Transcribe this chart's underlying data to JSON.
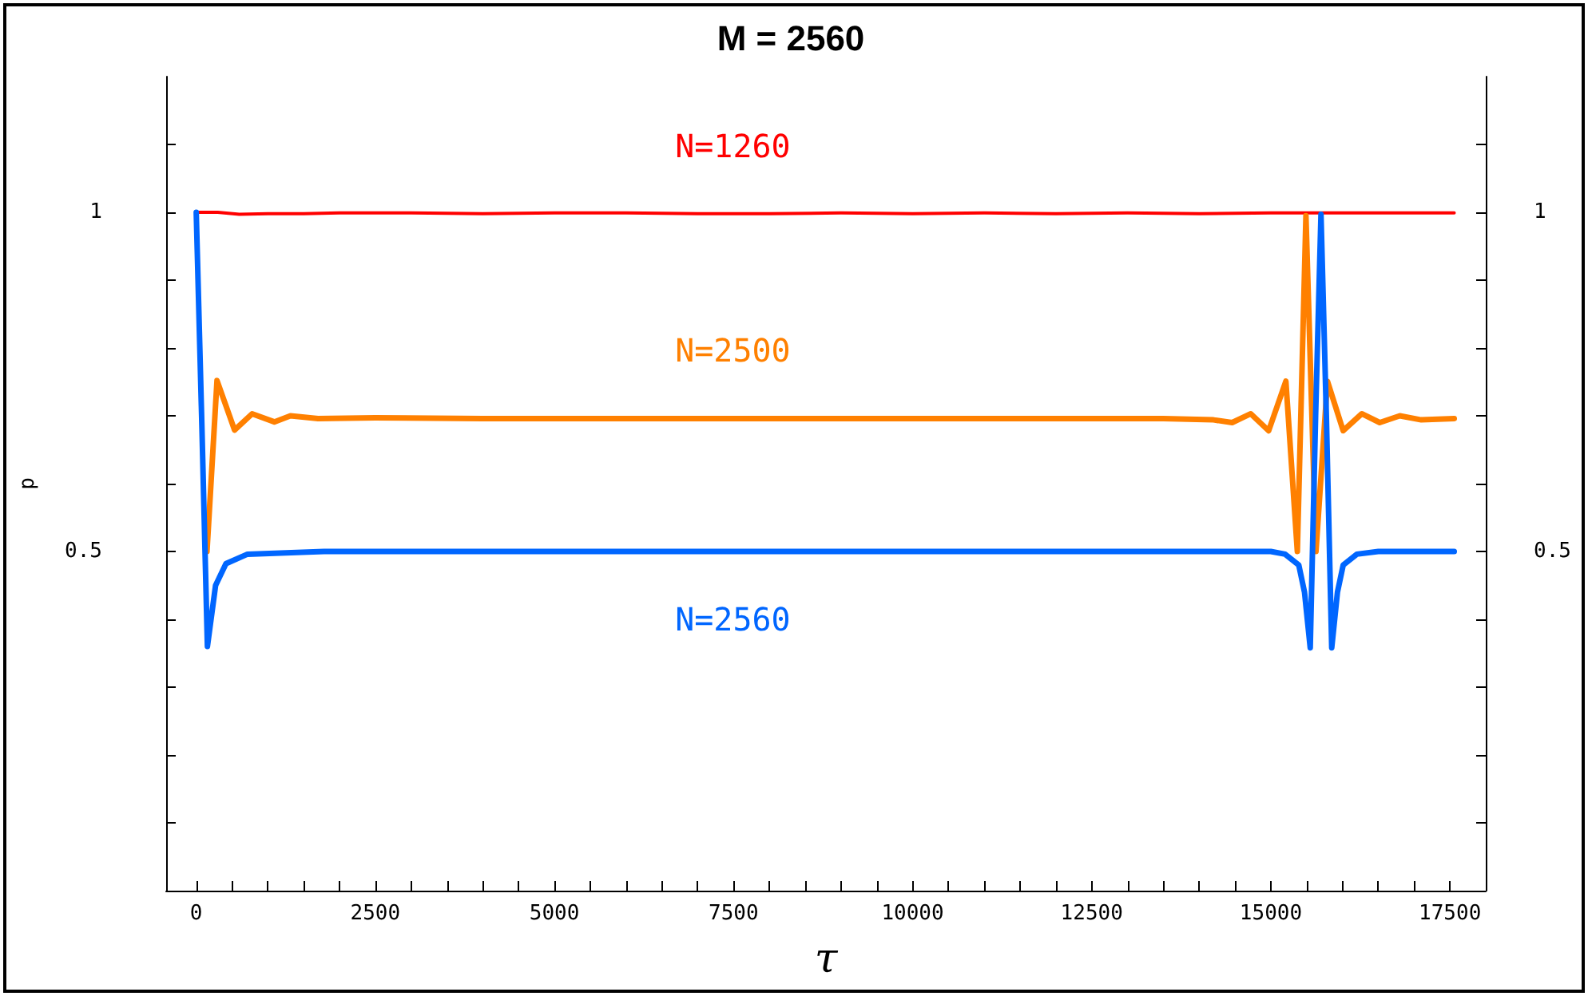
{
  "chart_data": {
    "type": "line",
    "title": "M = 2560",
    "xlabel": "τ",
    "ylabel": "p",
    "xlim": [
      -420,
      18000
    ],
    "ylim": [
      0,
      1.2
    ],
    "y2lim": [
      0,
      1.2
    ],
    "xticks": [
      0,
      {
        "value": 500,
        "label": null
      },
      {
        "value": 1000,
        "label": null
      },
      {
        "value": 1500,
        "label": null
      },
      {
        "value": 2000,
        "label": null
      },
      2500,
      {
        "value": 3000,
        "label": null
      },
      {
        "value": 3500,
        "label": null
      },
      {
        "value": 4000,
        "label": null
      },
      {
        "value": 4500,
        "label": null
      },
      5000,
      {
        "value": 5500,
        "label": null
      },
      {
        "value": 6000,
        "label": null
      },
      {
        "value": 6500,
        "label": null
      },
      {
        "value": 7000,
        "label": null
      },
      7500,
      {
        "value": 8000,
        "label": null
      },
      {
        "value": 8500,
        "label": null
      },
      {
        "value": 9000,
        "label": null
      },
      {
        "value": 9500,
        "label": null
      },
      10000,
      {
        "value": 10500,
        "label": null
      },
      {
        "value": 11000,
        "label": null
      },
      {
        "value": 11500,
        "label": null
      },
      {
        "value": 12000,
        "label": null
      },
      12500,
      {
        "value": 13000,
        "label": null
      },
      {
        "value": 13500,
        "label": null
      },
      {
        "value": 14000,
        "label": null
      },
      {
        "value": 14500,
        "label": null
      },
      15000,
      {
        "value": 15500,
        "label": null
      },
      {
        "value": 16000,
        "label": null
      },
      {
        "value": 16500,
        "label": null
      },
      {
        "value": 17000,
        "label": null
      },
      17500
    ],
    "yticks": [
      {
        "value": 0.1,
        "label": null
      },
      {
        "value": 0.2,
        "label": null
      },
      {
        "value": 0.3,
        "label": null
      },
      {
        "value": 0.4,
        "label": null
      },
      0.5,
      {
        "value": 0.6,
        "label": null
      },
      {
        "value": 0.7,
        "label": null
      },
      {
        "value": 0.8,
        "label": null
      },
      {
        "value": 0.9,
        "label": null
      },
      1,
      {
        "value": 1.1,
        "label": null
      }
    ],
    "y2ticks": [
      {
        "value": 0.1,
        "label": null
      },
      {
        "value": 0.2,
        "label": null
      },
      {
        "value": 0.3,
        "label": null
      },
      {
        "value": 0.4,
        "label": null
      },
      0.5,
      {
        "value": 0.6,
        "label": null
      },
      {
        "value": 0.7,
        "label": null
      },
      {
        "value": 0.8,
        "label": null
      },
      {
        "value": 0.9,
        "label": null
      },
      1,
      {
        "value": 1.1,
        "label": null
      }
    ],
    "grid": false,
    "legend": false,
    "marker": "none",
    "line_style": "solid",
    "series": [
      {
        "name": "N=1260",
        "color": "#ff0000",
        "x": [
          0,
          300,
          600,
          1000,
          1500,
          2000,
          3000,
          4000,
          5000,
          6000,
          7000,
          8000,
          9000,
          10000,
          11000,
          12000,
          13000,
          14000,
          15000,
          15500,
          16000,
          16500,
          17000,
          17560
        ],
        "values": [
          1,
          1,
          0.997,
          0.998,
          0.998,
          0.999,
          0.999,
          0.998,
          0.999,
          0.999,
          0.998,
          0.998,
          0.999,
          0.998,
          0.999,
          0.998,
          0.999,
          0.998,
          0.999,
          0.999,
          0.999,
          0.999,
          0.999,
          0.999
        ]
      },
      {
        "name": "N=2500",
        "color": "#ff8000",
        "x": [
          150,
          290,
          535,
          780,
          1090,
          1315,
          1700,
          2500,
          4000,
          6000,
          8000,
          10000,
          12000,
          13500,
          14200,
          14460,
          14720,
          14970,
          15210,
          15370,
          15490,
          15630,
          15790,
          16010,
          16270,
          16520,
          16800,
          17100,
          17560
        ],
        "values": [
          0.5,
          0.752,
          0.679,
          0.703,
          0.691,
          0.7,
          0.696,
          0.697,
          0.696,
          0.696,
          0.696,
          0.696,
          0.696,
          0.696,
          0.694,
          0.69,
          0.703,
          0.678,
          0.751,
          0.5,
          0.995,
          0.5,
          0.751,
          0.678,
          0.703,
          0.69,
          0.7,
          0.694,
          0.696
        ]
      },
      {
        "name": "N=2560",
        "color": "#0066ff",
        "x": [
          0,
          80,
          156,
          270,
          415,
          715,
          1785,
          5000,
          10000,
          15000,
          15200,
          15390,
          15470,
          15550,
          15625,
          15700,
          15775,
          15850,
          15930,
          16010,
          16200,
          16500,
          17560
        ],
        "values": [
          1,
          0.68,
          0.36,
          0.45,
          0.482,
          0.496,
          0.5,
          0.5,
          0.5,
          0.5,
          0.496,
          0.48,
          0.44,
          0.358,
          0.7,
          0.997,
          0.7,
          0.358,
          0.44,
          0.48,
          0.496,
          0.5,
          0.5
        ]
      }
    ]
  }
}
